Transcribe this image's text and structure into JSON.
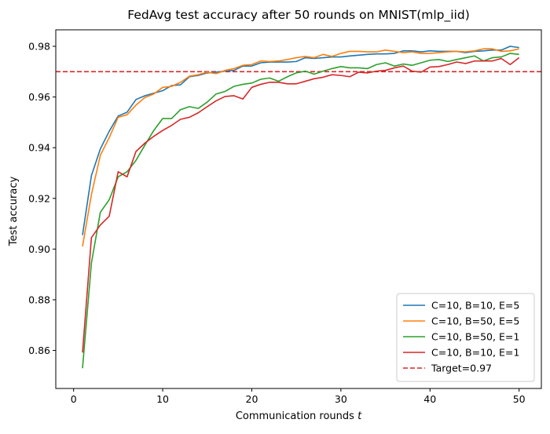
{
  "chart_data": {
    "type": "line",
    "title": "FedAvg test accuracy after 50 rounds on MNIST(mlp_iid)",
    "xlabel": "Communication rounds",
    "xlabel_var": "t",
    "ylabel": "Test accuracy",
    "xlim": [
      -2,
      52.5
    ],
    "ylim": [
      0.845,
      0.9865
    ],
    "xticks": [
      0,
      10,
      20,
      30,
      40,
      50
    ],
    "yticks": [
      0.86,
      0.88,
      0.9,
      0.92,
      0.94,
      0.96,
      0.98
    ],
    "ytick_labels": [
      "0.86",
      "0.88",
      "0.90",
      "0.92",
      "0.94",
      "0.96",
      "0.98"
    ],
    "grid": false,
    "legend_position": "lower-right",
    "x": [
      1,
      2,
      3,
      4,
      5,
      6,
      7,
      8,
      9,
      10,
      11,
      12,
      13,
      14,
      15,
      16,
      17,
      18,
      19,
      20,
      21,
      22,
      23,
      24,
      25,
      26,
      27,
      28,
      29,
      30,
      31,
      32,
      33,
      34,
      35,
      36,
      37,
      38,
      39,
      40,
      41,
      42,
      43,
      44,
      45,
      46,
      47,
      48,
      49,
      50
    ],
    "series": [
      {
        "name": "C=10, B=10, E=5",
        "color": "#1f77b4",
        "values": [
          0.9055,
          0.929,
          0.9395,
          0.9465,
          0.9525,
          0.954,
          0.959,
          0.9605,
          0.9615,
          0.9625,
          0.9645,
          0.9648,
          0.968,
          0.9685,
          0.9695,
          0.9698,
          0.9702,
          0.9705,
          0.9722,
          0.9722,
          0.9735,
          0.9738,
          0.9738,
          0.9738,
          0.974,
          0.9755,
          0.9752,
          0.9755,
          0.9758,
          0.9758,
          0.9762,
          0.9765,
          0.9768,
          0.977,
          0.977,
          0.9772,
          0.9782,
          0.9782,
          0.9778,
          0.9782,
          0.978,
          0.978,
          0.978,
          0.9775,
          0.978,
          0.9782,
          0.9785,
          0.9785,
          0.98,
          0.9795
        ]
      },
      {
        "name": "C=10, B=50, E=5",
        "color": "#ff7f0e",
        "values": [
          0.901,
          0.9215,
          0.937,
          0.944,
          0.952,
          0.953,
          0.9568,
          0.9598,
          0.9612,
          0.9638,
          0.9642,
          0.9658,
          0.9682,
          0.9688,
          0.9698,
          0.9692,
          0.9705,
          0.9712,
          0.9725,
          0.9728,
          0.9742,
          0.974,
          0.9742,
          0.9748,
          0.9755,
          0.976,
          0.9755,
          0.9768,
          0.976,
          0.9772,
          0.978,
          0.978,
          0.9778,
          0.9778,
          0.9785,
          0.978,
          0.9775,
          0.9778,
          0.9772,
          0.9772,
          0.9775,
          0.9778,
          0.978,
          0.9778,
          0.9782,
          0.979,
          0.979,
          0.978,
          0.9782,
          0.979
        ]
      },
      {
        "name": "C=10, B=50, E=1",
        "color": "#2ca02c",
        "values": [
          0.853,
          0.8945,
          0.9145,
          0.9195,
          0.9285,
          0.9305,
          0.935,
          0.941,
          0.9468,
          0.9515,
          0.9515,
          0.955,
          0.9562,
          0.9555,
          0.958,
          0.9612,
          0.9622,
          0.9642,
          0.965,
          0.9655,
          0.967,
          0.9675,
          0.9662,
          0.968,
          0.9695,
          0.9702,
          0.969,
          0.9702,
          0.9712,
          0.972,
          0.9715,
          0.9715,
          0.9712,
          0.9728,
          0.9735,
          0.9722,
          0.973,
          0.9725,
          0.9735,
          0.9745,
          0.9748,
          0.974,
          0.9748,
          0.9755,
          0.9762,
          0.9742,
          0.9755,
          0.9758,
          0.9772,
          0.9768
        ]
      },
      {
        "name": "C=10, B=10, E=1",
        "color": "#d62728",
        "values": [
          0.8592,
          0.9045,
          0.9095,
          0.913,
          0.9305,
          0.9285,
          0.9385,
          0.9418,
          0.9445,
          0.9468,
          0.9488,
          0.9512,
          0.952,
          0.9538,
          0.9562,
          0.9585,
          0.9602,
          0.9605,
          0.9592,
          0.9638,
          0.965,
          0.9658,
          0.9658,
          0.9652,
          0.9652,
          0.9662,
          0.9672,
          0.9678,
          0.9688,
          0.9685,
          0.968,
          0.9698,
          0.9695,
          0.9702,
          0.9705,
          0.9715,
          0.9722,
          0.9702,
          0.9698,
          0.9718,
          0.972,
          0.9728,
          0.9738,
          0.9732,
          0.9742,
          0.9742,
          0.9742,
          0.9752,
          0.9728,
          0.9755
        ]
      }
    ],
    "reference_line": {
      "name": "Target=0.97",
      "value": 0.97,
      "color": "#d62728",
      "style": "dashed"
    }
  }
}
